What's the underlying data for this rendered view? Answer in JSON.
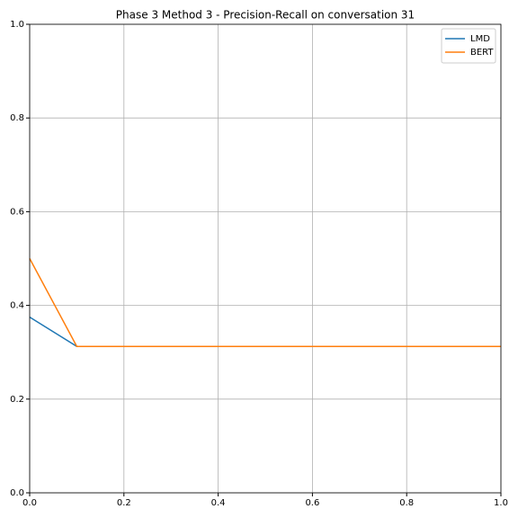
{
  "chart_data": {
    "type": "line",
    "title": "Phase 3 Method 3 - Precision-Recall on conversation 31",
    "x": [
      0,
      0.1,
      0.2,
      0.3,
      0.4,
      0.5,
      0.6,
      0.7,
      0.8,
      0.9,
      1.0
    ],
    "series": [
      {
        "name": "LMD",
        "color": "#1f77b4",
        "values": [
          0.375,
          0.3125,
          0.3125,
          0.3125,
          0.3125,
          0.3125,
          0.3125,
          0.3125,
          0.3125,
          0.3125,
          0.3125
        ]
      },
      {
        "name": "BERT",
        "color": "#ff7f0e",
        "values": [
          0.5,
          0.3125,
          0.3125,
          0.3125,
          0.3125,
          0.3125,
          0.3125,
          0.3125,
          0.3125,
          0.3125,
          0.3125
        ]
      }
    ],
    "xlim": [
      0,
      1
    ],
    "ylim": [
      0,
      1
    ],
    "xticks": [
      {
        "value": 0,
        "label": "0.0"
      },
      0.2,
      0.4,
      0.6,
      0.8,
      {
        "value": 1,
        "label": "1.0"
      }
    ],
    "yticks": [
      {
        "value": 0,
        "label": "0.0"
      },
      0.2,
      0.4,
      0.6,
      0.8,
      {
        "value": 1,
        "label": "1.0"
      }
    ],
    "grid": true,
    "legend": "upper right"
  }
}
